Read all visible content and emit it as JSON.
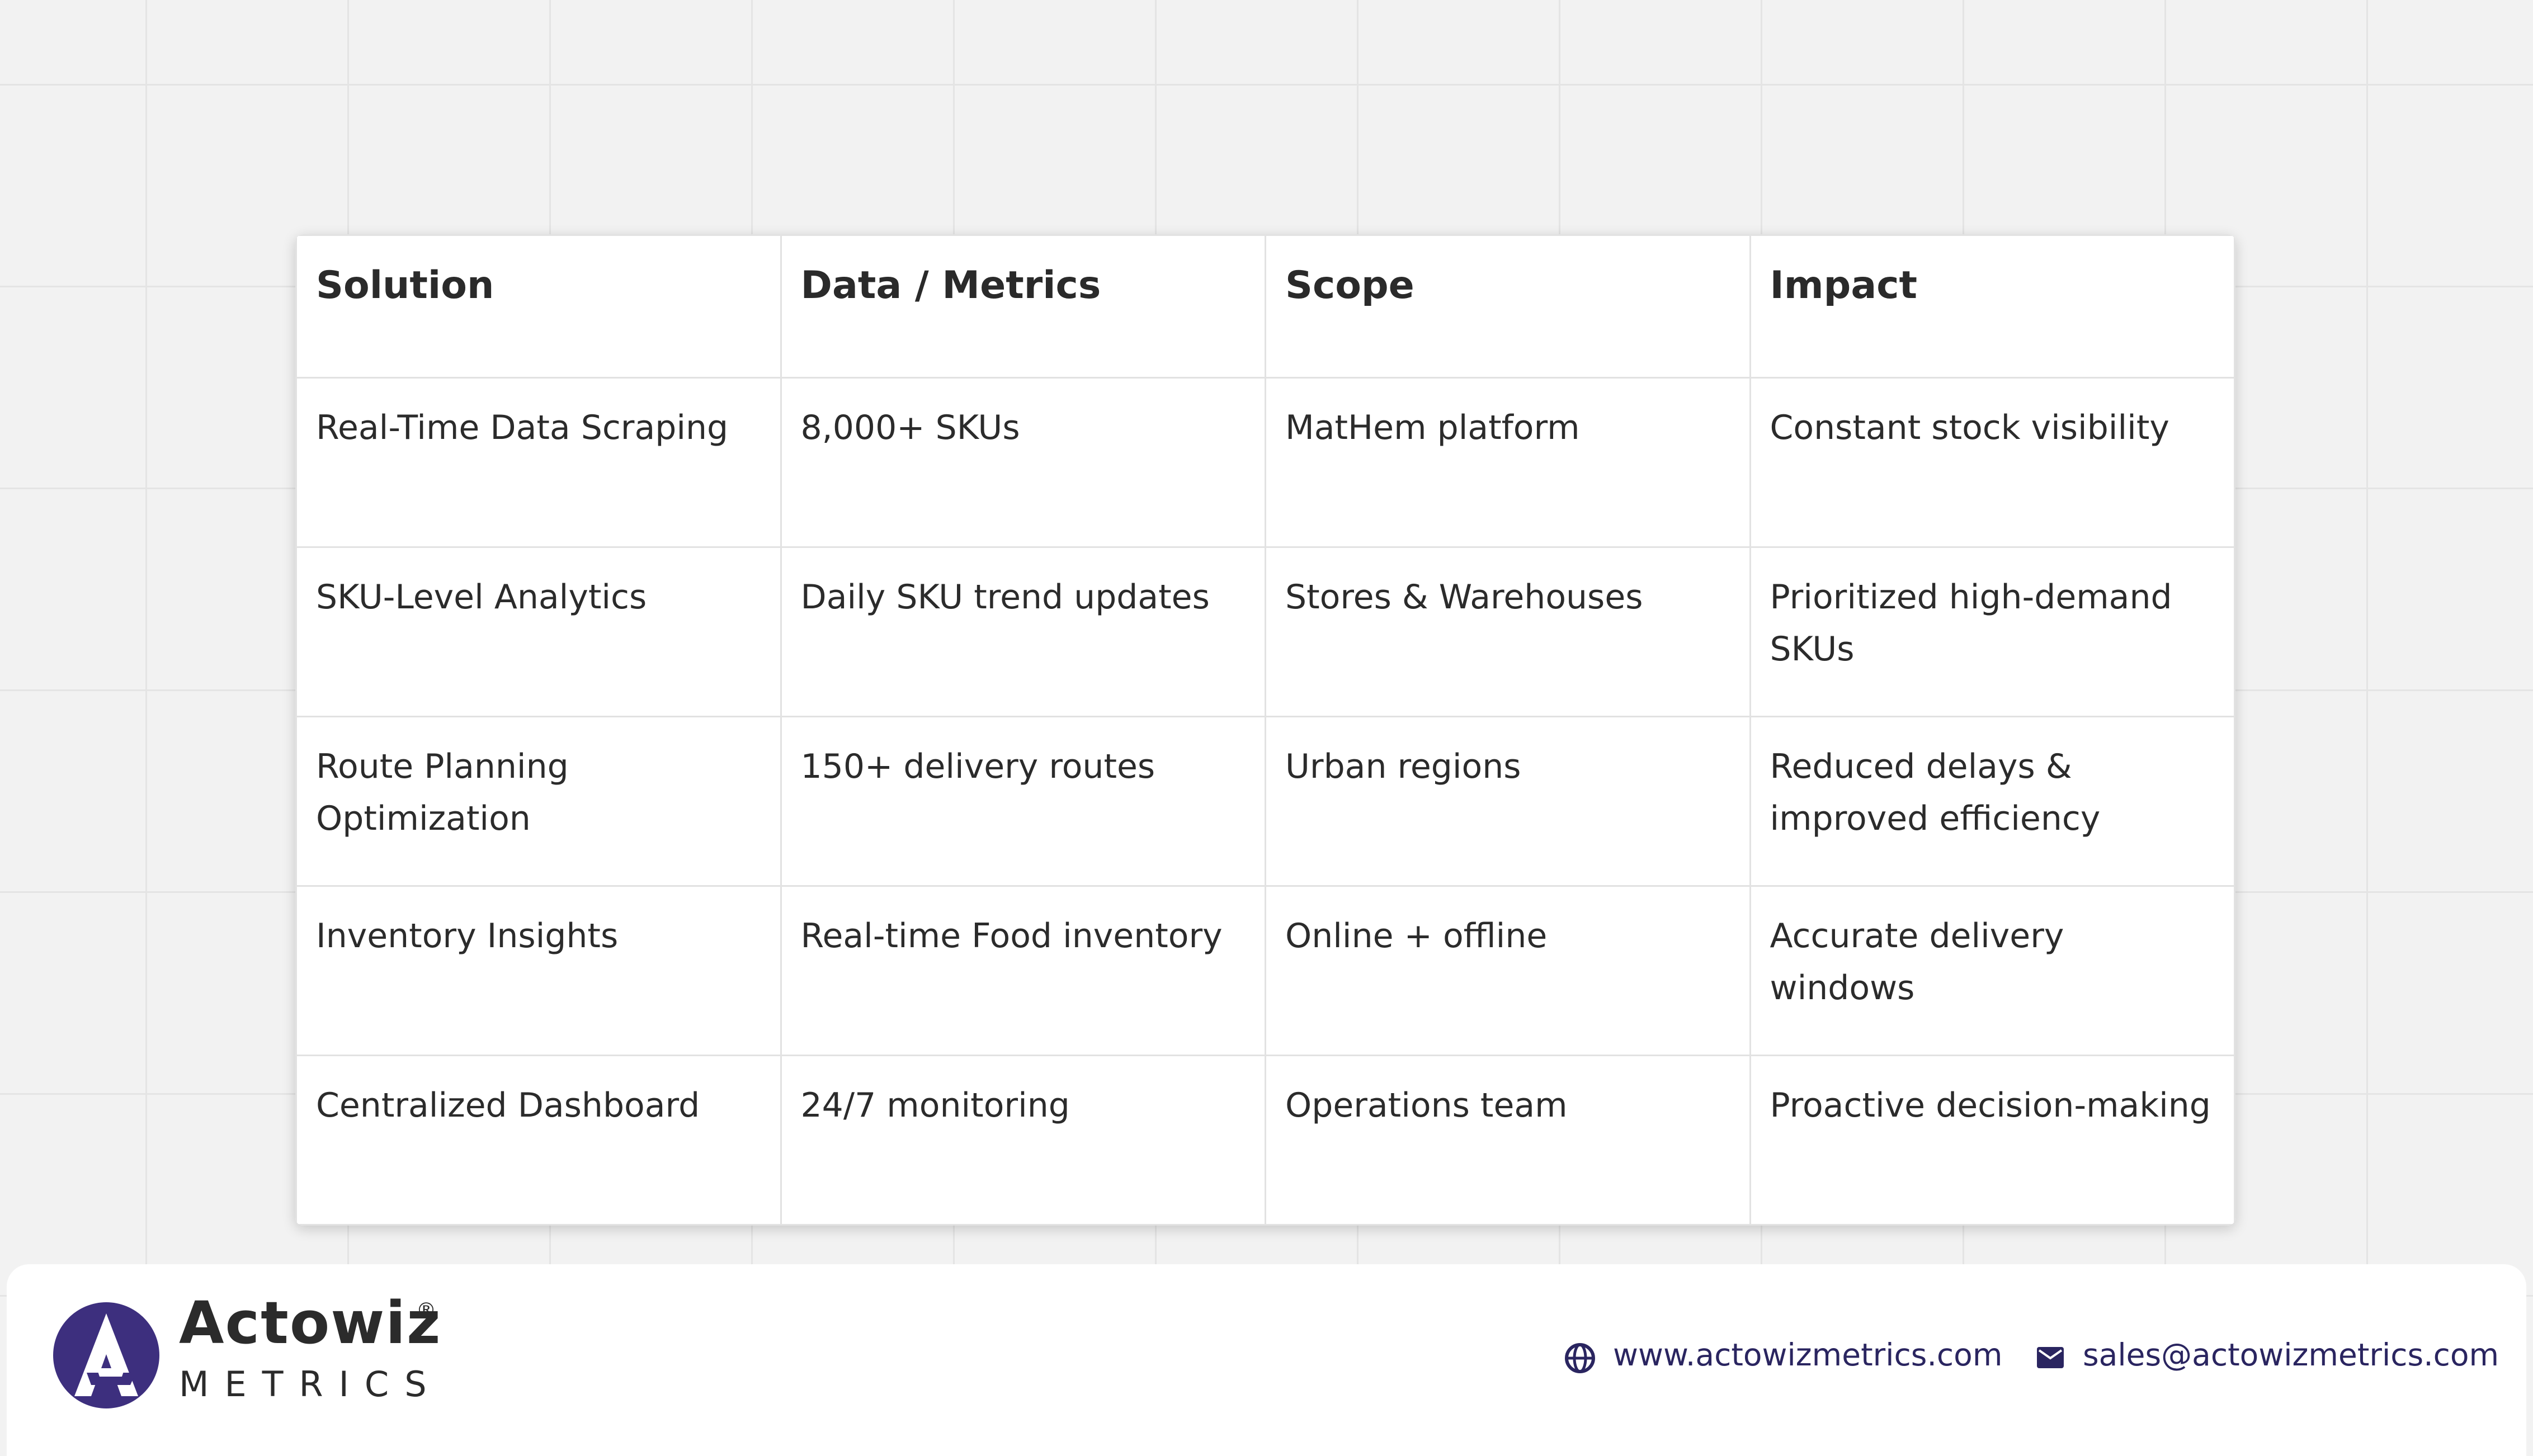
{
  "table": {
    "header": [
      "Solution",
      "Data / Metrics",
      "Scope",
      "Impact"
    ],
    "rows": [
      [
        "Real-Time Data Scraping",
        "8,000+ SKUs",
        "MatHem platform",
        "Constant stock visibility"
      ],
      [
        "SKU-Level Analytics",
        "Daily SKU trend updates",
        "Stores & Warehouses",
        "Prioritized high-demand SKUs"
      ],
      [
        "Route Planning Optimization",
        "150+ delivery routes",
        "Urban regions",
        "Reduced delays & improved efficiency"
      ],
      [
        "Inventory Insights",
        "Real-time Food inventory",
        "Online + offline",
        "Accurate delivery windows"
      ],
      [
        "Centralized Dashboard",
        "24/7 monitoring",
        "Operations team",
        "Proactive decision-making"
      ]
    ]
  },
  "footer": {
    "brand": "Actowiz",
    "brand_mark": "®",
    "brand_sub": "METRICS",
    "website": "www.actowizmetrics.com",
    "email": "sales@actowizmetrics.com"
  }
}
